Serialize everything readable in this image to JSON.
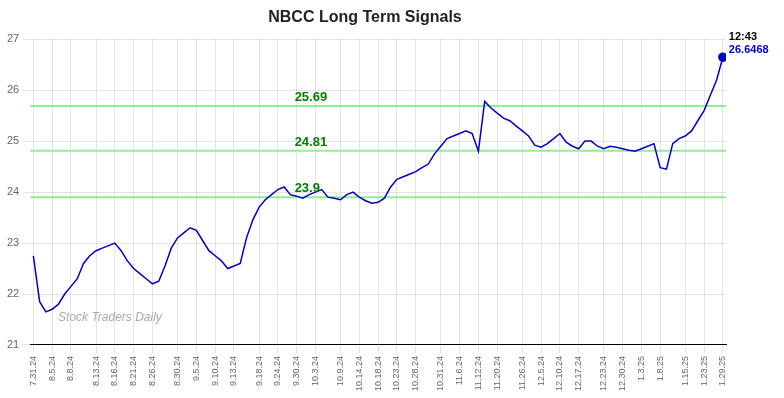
{
  "chart_data": {
    "type": "line",
    "title": "NBCC Long Term Signals",
    "categories": [
      "7.31.24",
      null,
      null,
      "8.5.24",
      null,
      null,
      "8.8.24",
      null,
      null,
      null,
      "8.13.24",
      null,
      null,
      "8.16.24",
      null,
      null,
      "8.21.24",
      null,
      null,
      "8.26.24",
      null,
      null,
      null,
      "8.30.24",
      null,
      null,
      "9.5.24",
      null,
      null,
      "9.10.24",
      null,
      null,
      "9.13.24",
      null,
      null,
      null,
      "9.18.24",
      null,
      null,
      "9.24.24",
      null,
      null,
      "9.30.24",
      null,
      null,
      "10.3.24",
      null,
      null,
      null,
      "10.9.24",
      null,
      null,
      "10.14.24",
      null,
      null,
      "10.18.24",
      null,
      null,
      "10.23.24",
      null,
      null,
      "10.28.24",
      null,
      null,
      null,
      "10.31.24",
      null,
      null,
      "11.6.24",
      null,
      null,
      "11.12.24",
      null,
      null,
      "11.20.24",
      null,
      null,
      null,
      "11.26.24",
      null,
      null,
      "12.5.24",
      null,
      null,
      "12.10.24",
      null,
      null,
      "12.17.24",
      null,
      null,
      null,
      "12.23.24",
      null,
      null,
      "12.30.24",
      null,
      null,
      "1.3.25",
      null,
      null,
      "1.8.25",
      null,
      null,
      null,
      "1.15.25",
      null,
      null,
      "1.23.25",
      null,
      null,
      "1.29.25"
    ],
    "values": [
      22.75,
      21.85,
      21.65,
      21.7,
      21.8,
      22.0,
      22.15,
      22.3,
      22.6,
      22.75,
      22.85,
      22.9,
      22.95,
      23.0,
      22.85,
      22.65,
      22.5,
      22.4,
      22.3,
      22.2,
      22.25,
      22.55,
      22.9,
      23.1,
      23.2,
      23.3,
      23.25,
      23.05,
      22.85,
      22.75,
      22.65,
      22.5,
      22.55,
      22.6,
      23.1,
      23.45,
      23.7,
      23.85,
      23.95,
      24.05,
      24.1,
      23.95,
      23.92,
      23.88,
      23.95,
      24.0,
      24.05,
      23.9,
      23.88,
      23.85,
      23.95,
      24.0,
      23.9,
      23.83,
      23.78,
      23.8,
      23.88,
      24.1,
      24.25,
      24.3,
      24.35,
      24.4,
      24.48,
      24.55,
      24.75,
      24.9,
      25.05,
      25.1,
      25.15,
      25.2,
      25.15,
      24.8,
      25.78,
      25.65,
      25.55,
      25.45,
      25.4,
      25.3,
      25.2,
      25.1,
      24.92,
      24.88,
      24.95,
      25.05,
      25.15,
      24.98,
      24.9,
      24.85,
      25.0,
      25.0,
      24.9,
      24.85,
      24.9,
      24.88,
      24.85,
      24.82,
      24.8,
      24.85,
      24.9,
      24.95,
      24.48,
      24.45,
      24.95,
      25.05,
      25.1,
      25.2,
      25.4,
      25.6,
      25.9,
      26.2,
      26.6468
    ],
    "color": "#0000CC",
    "last_point": {
      "color": "#0000CC",
      "time": "12:43",
      "price_label": "26.6468"
    },
    "hlines": [
      {
        "value": 23.9,
        "label": "23.9",
        "color": "#90EE90"
      },
      {
        "value": 24.81,
        "label": "24.81",
        "color": "#90EE90"
      },
      {
        "value": 25.69,
        "label": "25.69",
        "color": "#90EE90"
      }
    ],
    "watermark": "Stock Traders Daily",
    "ylim": [
      21,
      27
    ],
    "yticks": [
      21,
      22,
      23,
      24,
      25,
      26,
      27
    ],
    "grid": true
  }
}
